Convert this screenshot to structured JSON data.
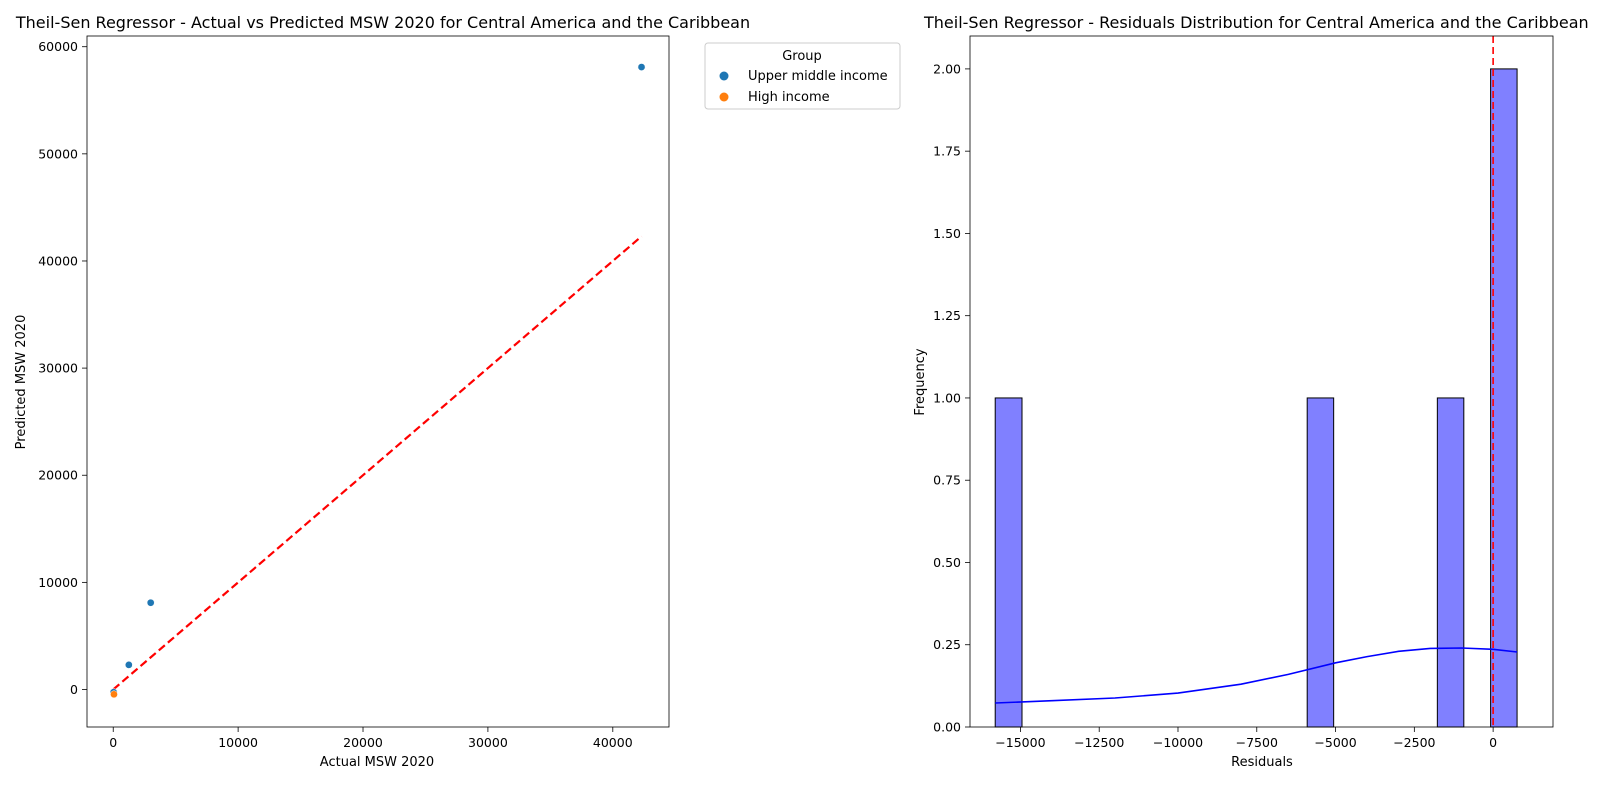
{
  "chart_data": [
    {
      "type": "scatter",
      "title": "Theil-Sen Regressor - Actual vs Predicted MSW 2020 for Central America and the Caribbean",
      "xlabel": "Actual MSW 2020",
      "ylabel": "Predicted MSW 2020",
      "xlim": [
        -2100,
        44500
      ],
      "ylim": [
        -3500,
        61000
      ],
      "xticks": [
        0,
        10000,
        20000,
        30000,
        40000
      ],
      "yticks": [
        0,
        10000,
        20000,
        30000,
        40000,
        50000,
        60000
      ],
      "legend": {
        "title": "Group",
        "placement": "outside upper right",
        "entries": [
          "Upper middle income",
          "High income"
        ]
      },
      "series": [
        {
          "name": "Upper middle income",
          "color": "#1f77b4",
          "points": [
            [
              42300,
              58100
            ],
            [
              3000,
              8100
            ],
            [
              1250,
              2300
            ],
            [
              30,
              -250
            ]
          ]
        },
        {
          "name": "High income",
          "color": "#ff7f0e",
          "points": [
            [
              60,
              -450
            ]
          ]
        }
      ],
      "reference_line": {
        "style": "dashed",
        "color": "#ff0000",
        "from": [
          0,
          0
        ],
        "to": [
          42300,
          42300
        ]
      },
      "grid": false
    },
    {
      "type": "histogram",
      "title": "Theil-Sen Regressor - Residuals Distribution for Central America and the Caribbean",
      "xlabel": "Residuals",
      "ylabel": "Frequency",
      "xlim": [
        -16600,
        1900
      ],
      "ylim": [
        0,
        2.1
      ],
      "xticks": [
        -15000,
        -12500,
        -10000,
        -7500,
        -5000,
        -2500,
        0
      ],
      "xtick_labels": [
        "−15000",
        "−12500",
        "−10000",
        "−7500",
        "−5000",
        "−2500",
        "0"
      ],
      "yticks": [
        0.0,
        0.25,
        0.5,
        0.75,
        1.0,
        1.25,
        1.5,
        1.75,
        2.0
      ],
      "ytick_labels": [
        "0.00",
        "0.25",
        "0.50",
        "0.75",
        "1.00",
        "1.25",
        "1.50",
        "1.75",
        "2.00"
      ],
      "bars": [
        {
          "x0": -15800,
          "x1": -14950,
          "count": 1
        },
        {
          "x0": -5900,
          "x1": -5060,
          "count": 1
        },
        {
          "x0": -1770,
          "x1": -930,
          "count": 1
        },
        {
          "x0": -80,
          "x1": 760,
          "count": 2
        }
      ],
      "bar_color": "#8080ff",
      "kde": {
        "color": "#0000ff",
        "x": [
          -15800,
          -14000,
          -12000,
          -10000,
          -8000,
          -6500,
          -5000,
          -4000,
          -3000,
          -2000,
          -1000,
          0,
          760
        ],
        "y": [
          0.073,
          0.08,
          0.088,
          0.103,
          0.13,
          0.16,
          0.195,
          0.214,
          0.23,
          0.239,
          0.24,
          0.236,
          0.228
        ]
      },
      "reference_line": {
        "style": "dashed",
        "color": "#ff0000",
        "x": 0
      },
      "grid": false
    }
  ]
}
